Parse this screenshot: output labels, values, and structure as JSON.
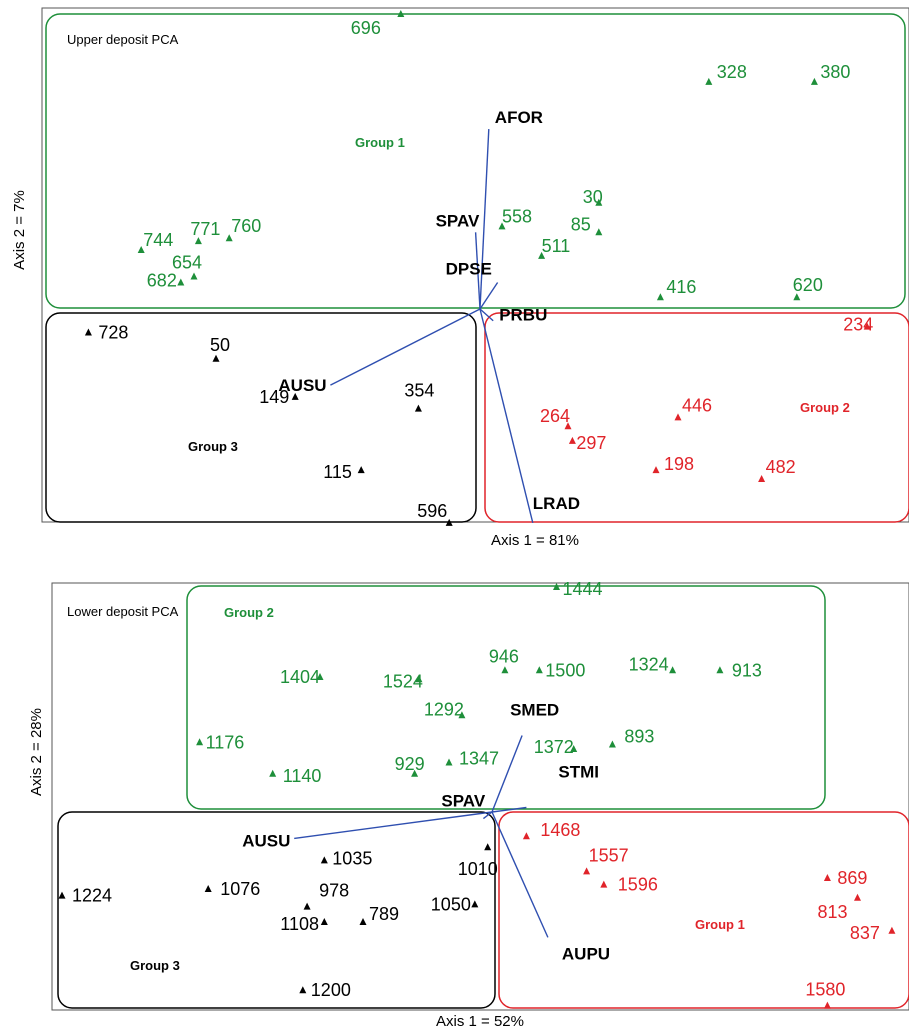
{
  "colors": {
    "group_green": "#1e8f3a",
    "group_red": "#e0242a",
    "group_black": "#000000",
    "vector": "#2f4fb0",
    "frame": "#555555"
  },
  "chart_data": [
    {
      "type": "scatter",
      "title": "Upper deposit PCA",
      "xlabel": "Axis 1 = 81%",
      "ylabel": "Axis 2 = 7%",
      "groups": [
        {
          "name": "Group 1",
          "color": "#1e8f3a"
        },
        {
          "name": "Group 2",
          "color": "#e0242a"
        },
        {
          "name": "Group 3",
          "color": "#000000"
        }
      ],
      "points": [
        {
          "label": "696",
          "group": "Group 1",
          "x": -0.18,
          "y": 1.0
        },
        {
          "label": "328",
          "group": "Group 1",
          "x": 0.52,
          "y": 0.77
        },
        {
          "label": "380",
          "group": "Group 1",
          "x": 0.76,
          "y": 0.77
        },
        {
          "label": "30",
          "group": "Group 1",
          "x": 0.27,
          "y": 0.36
        },
        {
          "label": "85",
          "group": "Group 1",
          "x": 0.27,
          "y": 0.26
        },
        {
          "label": "558",
          "group": "Group 1",
          "x": 0.05,
          "y": 0.28
        },
        {
          "label": "511",
          "group": "Group 1",
          "x": 0.14,
          "y": 0.18
        },
        {
          "label": "416",
          "group": "Group 1",
          "x": 0.41,
          "y": 0.04
        },
        {
          "label": "620",
          "group": "Group 1",
          "x": 0.72,
          "y": 0.04
        },
        {
          "label": "744",
          "group": "Group 1",
          "x": -0.77,
          "y": 0.2
        },
        {
          "label": "771",
          "group": "Group 1",
          "x": -0.64,
          "y": 0.23
        },
        {
          "label": "760",
          "group": "Group 1",
          "x": -0.57,
          "y": 0.24
        },
        {
          "label": "654",
          "group": "Group 1",
          "x": -0.65,
          "y": 0.11
        },
        {
          "label": "682",
          "group": "Group 1",
          "x": -0.68,
          "y": 0.09
        },
        {
          "label": "234",
          "group": "Group 2",
          "x": 0.88,
          "y": -0.06
        },
        {
          "label": "446",
          "group": "Group 2",
          "x": 0.45,
          "y": -0.37
        },
        {
          "label": "264",
          "group": "Group 2",
          "x": 0.2,
          "y": -0.4
        },
        {
          "label": "297",
          "group": "Group 2",
          "x": 0.21,
          "y": -0.45
        },
        {
          "label": "198",
          "group": "Group 2",
          "x": 0.4,
          "y": -0.55
        },
        {
          "label": "482",
          "group": "Group 2",
          "x": 0.64,
          "y": -0.58
        },
        {
          "label": "728",
          "group": "Group 3",
          "x": -0.89,
          "y": -0.08
        },
        {
          "label": "50",
          "group": "Group 3",
          "x": -0.6,
          "y": -0.17
        },
        {
          "label": "149",
          "group": "Group 3",
          "x": -0.42,
          "y": -0.3
        },
        {
          "label": "354",
          "group": "Group 3",
          "x": -0.14,
          "y": -0.34
        },
        {
          "label": "115",
          "group": "Group 3",
          "x": -0.27,
          "y": -0.55
        },
        {
          "label": "596",
          "group": "Group 3",
          "x": -0.07,
          "y": -0.73
        }
      ],
      "vectors": [
        {
          "name": "AFOR",
          "x": 0.02,
          "y": 0.61
        },
        {
          "name": "SPAV",
          "x": -0.01,
          "y": 0.26
        },
        {
          "name": "DPSE",
          "x": 0.04,
          "y": 0.09
        },
        {
          "name": "PRBU",
          "x": 0.03,
          "y": -0.04
        },
        {
          "name": "AUSU",
          "x": -0.34,
          "y": -0.26
        },
        {
          "name": "LRAD",
          "x": 0.12,
          "y": -0.73
        }
      ]
    },
    {
      "type": "scatter",
      "title": "Lower deposit PCA",
      "xlabel": "Axis 1 = 52%",
      "ylabel": "Axis 2 = 28%",
      "groups": [
        {
          "name": "Group 1",
          "color": "#e0242a"
        },
        {
          "name": "Group 2",
          "color": "#1e8f3a"
        },
        {
          "name": "Group 3",
          "color": "#000000"
        }
      ],
      "points": [
        {
          "label": "1444",
          "group": "Group 2",
          "x": 0.15,
          "y": 1.0
        },
        {
          "label": "946",
          "group": "Group 2",
          "x": 0.03,
          "y": 0.63
        },
        {
          "label": "1500",
          "group": "Group 2",
          "x": 0.11,
          "y": 0.63
        },
        {
          "label": "1324",
          "group": "Group 2",
          "x": 0.42,
          "y": 0.63
        },
        {
          "label": "913",
          "group": "Group 2",
          "x": 0.53,
          "y": 0.63
        },
        {
          "label": "1404",
          "group": "Group 2",
          "x": -0.4,
          "y": 0.6
        },
        {
          "label": "1524",
          "group": "Group 2",
          "x": -0.17,
          "y": 0.59
        },
        {
          "label": "1292",
          "group": "Group 2",
          "x": -0.07,
          "y": 0.43
        },
        {
          "label": "1176",
          "group": "Group 2",
          "x": -0.68,
          "y": 0.31
        },
        {
          "label": "1372",
          "group": "Group 2",
          "x": 0.19,
          "y": 0.28
        },
        {
          "label": "893",
          "group": "Group 2",
          "x": 0.28,
          "y": 0.3
        },
        {
          "label": "1140",
          "group": "Group 2",
          "x": -0.51,
          "y": 0.17
        },
        {
          "label": "929",
          "group": "Group 2",
          "x": -0.18,
          "y": 0.17
        },
        {
          "label": "1347",
          "group": "Group 2",
          "x": -0.1,
          "y": 0.22
        },
        {
          "label": "1468",
          "group": "Group 1",
          "x": 0.08,
          "y": -0.11
        },
        {
          "label": "1557",
          "group": "Group 1",
          "x": 0.22,
          "y": -0.27
        },
        {
          "label": "1596",
          "group": "Group 1",
          "x": 0.26,
          "y": -0.33
        },
        {
          "label": "869",
          "group": "Group 1",
          "x": 0.78,
          "y": -0.3
        },
        {
          "label": "813",
          "group": "Group 1",
          "x": 0.85,
          "y": -0.39
        },
        {
          "label": "837",
          "group": "Group 1",
          "x": 0.93,
          "y": -0.54
        },
        {
          "label": "1580",
          "group": "Group 1",
          "x": 0.78,
          "y": -0.88
        },
        {
          "label": "1224",
          "group": "Group 3",
          "x": -1.0,
          "y": -0.38
        },
        {
          "label": "1076",
          "group": "Group 3",
          "x": -0.66,
          "y": -0.35
        },
        {
          "label": "1035",
          "group": "Group 3",
          "x": -0.39,
          "y": -0.22
        },
        {
          "label": "978",
          "group": "Group 3",
          "x": -0.43,
          "y": -0.43
        },
        {
          "label": "1108",
          "group": "Group 3",
          "x": -0.39,
          "y": -0.5
        },
        {
          "label": "789",
          "group": "Group 3",
          "x": -0.3,
          "y": -0.5
        },
        {
          "label": "1010",
          "group": "Group 3",
          "x": -0.01,
          "y": -0.16
        },
        {
          "label": "1050",
          "group": "Group 3",
          "x": -0.04,
          "y": -0.42
        },
        {
          "label": "1200",
          "group": "Group 3",
          "x": -0.44,
          "y": -0.81
        }
      ],
      "vectors": [
        {
          "name": "SMED",
          "x": 0.07,
          "y": 0.34
        },
        {
          "name": "STMI",
          "x": 0.08,
          "y": 0.02
        },
        {
          "name": "SPAV",
          "x": -0.02,
          "y": -0.03
        },
        {
          "name": "AUSU",
          "x": -0.46,
          "y": -0.12
        },
        {
          "name": "AUPU",
          "x": 0.13,
          "y": -0.57
        }
      ]
    }
  ]
}
